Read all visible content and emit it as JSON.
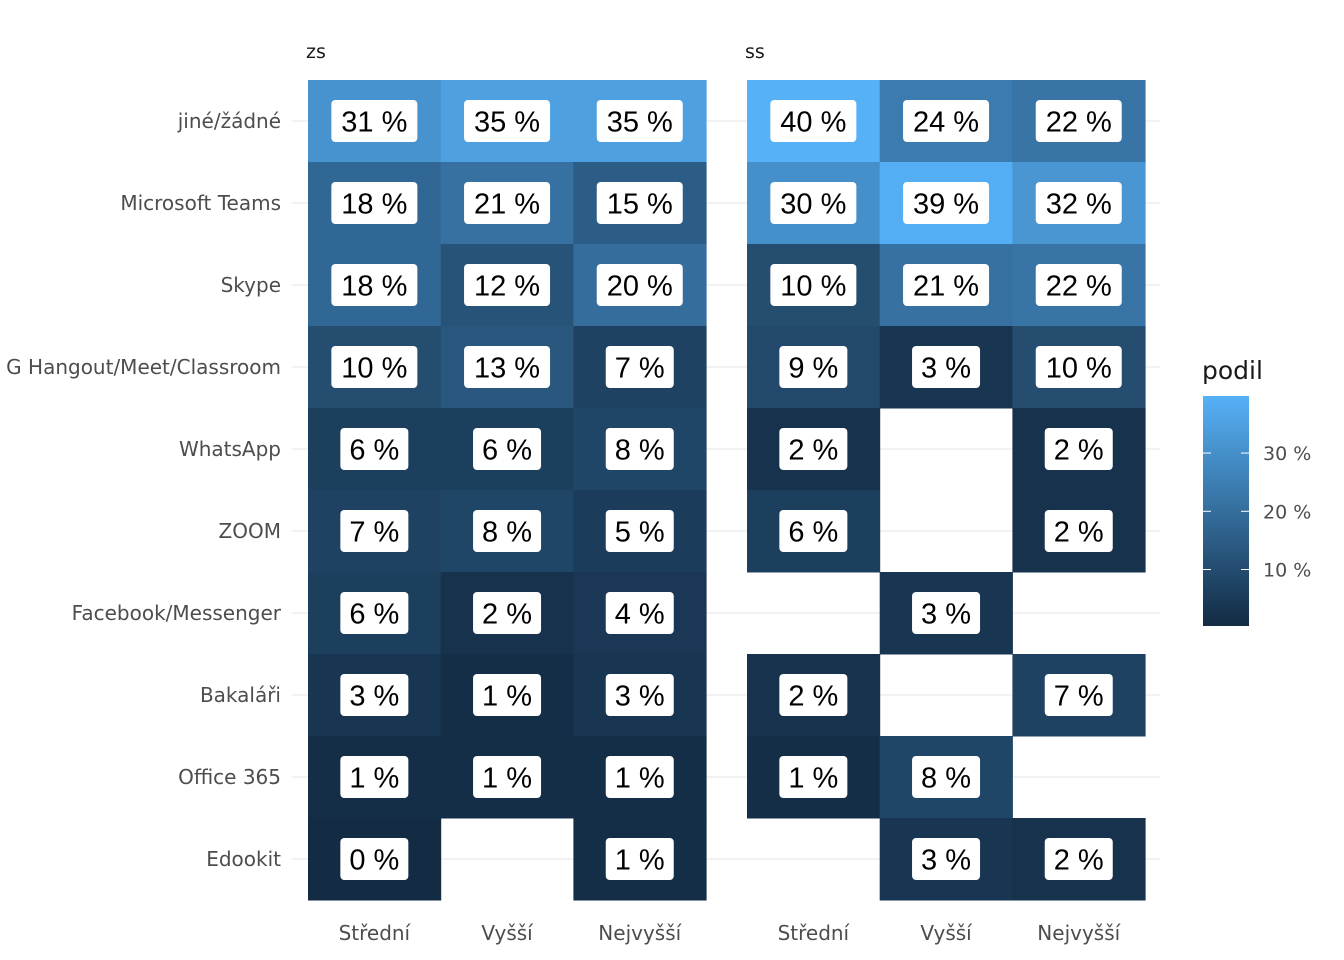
{
  "chart_data": {
    "type": "heatmap",
    "panels": [
      "zs",
      "ss"
    ],
    "rows": [
      "jiné/žádné",
      "Microsoft Teams",
      "Skype",
      "G Hangout/Meet/Classroom",
      "WhatsApp",
      "ZOOM",
      "Facebook/Messenger",
      "Bakaláři",
      "Office 365",
      "Edookit"
    ],
    "columns": [
      "Střední",
      "Vyšší",
      "Nejvyšší"
    ],
    "values": {
      "zs": [
        [
          31,
          35,
          35
        ],
        [
          18,
          21,
          15
        ],
        [
          18,
          12,
          20
        ],
        [
          10,
          13,
          7
        ],
        [
          6,
          6,
          8
        ],
        [
          7,
          8,
          5
        ],
        [
          6,
          2,
          4
        ],
        [
          3,
          1,
          3
        ],
        [
          1,
          1,
          1
        ],
        [
          0,
          null,
          1
        ]
      ],
      "ss": [
        [
          40,
          24,
          22
        ],
        [
          30,
          39,
          32
        ],
        [
          10,
          21,
          22
        ],
        [
          9,
          3,
          10
        ],
        [
          2,
          null,
          2
        ],
        [
          6,
          null,
          2
        ],
        [
          null,
          3,
          null
        ],
        [
          2,
          null,
          7
        ],
        [
          1,
          8,
          null
        ],
        [
          null,
          3,
          2
        ]
      ]
    },
    "value_suffix": " %",
    "legend": {
      "title": "podil",
      "ticks": [
        10,
        20,
        30
      ],
      "tick_labels": [
        "10 %",
        "20 %",
        "30 %"
      ],
      "range": [
        0,
        40
      ],
      "placement": "right",
      "color_low": "#132b43",
      "color_high": "#56b1f7"
    }
  }
}
